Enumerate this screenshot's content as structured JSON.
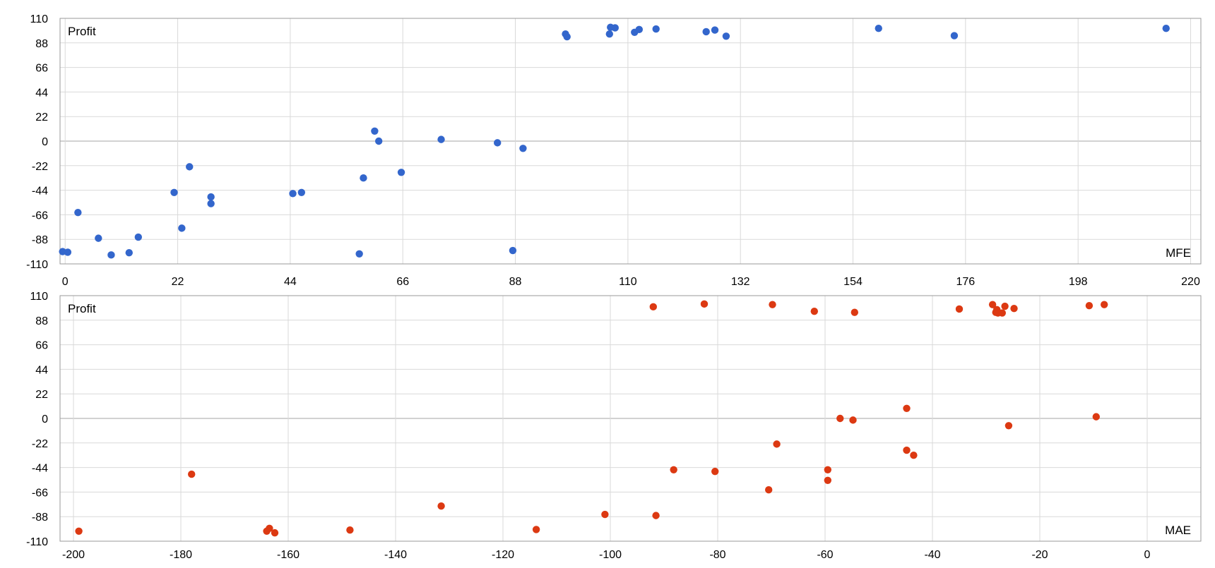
{
  "chart_data": [
    {
      "type": "scatter",
      "title": "",
      "xlabel": "MFE",
      "ylabel": "Profit",
      "xlim": [
        -1,
        222
      ],
      "ylim": [
        -110,
        110
      ],
      "x_ticks": [
        0,
        22,
        44,
        66,
        88,
        110,
        132,
        154,
        176,
        198,
        220
      ],
      "y_ticks": [
        110,
        88,
        66,
        44,
        22,
        0,
        -22,
        -44,
        -66,
        -88,
        -110
      ],
      "grid": true,
      "color": "#3366cc",
      "series": [
        {
          "points": [
            [
              -0.5,
              -99
            ],
            [
              0.5,
              -99.5
            ],
            [
              2.5,
              -64
            ],
            [
              6.5,
              -87
            ],
            [
              9,
              -102
            ],
            [
              12.5,
              -100
            ],
            [
              14.3,
              -86
            ],
            [
              21.3,
              -46
            ],
            [
              22.8,
              -78
            ],
            [
              24.3,
              -23
            ],
            [
              28.5,
              -50
            ],
            [
              28.5,
              -56
            ],
            [
              44.5,
              -47
            ],
            [
              46.2,
              -46
            ],
            [
              57.5,
              -101
            ],
            [
              58.3,
              -33
            ],
            [
              60.5,
              9
            ],
            [
              61.3,
              0
            ],
            [
              65.7,
              -28
            ],
            [
              73.5,
              1.5
            ],
            [
              84.5,
              -1.5
            ],
            [
              87.5,
              -98
            ],
            [
              89.5,
              -6.5
            ],
            [
              97.8,
              96
            ],
            [
              98.1,
              93.5
            ],
            [
              106.4,
              96
            ],
            [
              106.6,
              102
            ],
            [
              107.5,
              101.5
            ],
            [
              111.3,
              97.5
            ],
            [
              112.2,
              100
            ],
            [
              115.5,
              100.5
            ],
            [
              125.3,
              98
            ],
            [
              127,
              99.5
            ],
            [
              129.2,
              94
            ],
            [
              159,
              101
            ],
            [
              173.8,
              94.5
            ],
            [
              215.2,
              101
            ]
          ]
        }
      ]
    },
    {
      "type": "scatter",
      "title": "",
      "xlabel": "MAE",
      "ylabel": "Profit",
      "xlim": [
        -202.5,
        10
      ],
      "ylim": [
        -110,
        110
      ],
      "x_ticks": [
        -200,
        -180,
        -160,
        -140,
        -120,
        -100,
        -80,
        -60,
        -40,
        -20,
        0
      ],
      "y_ticks": [
        110,
        88,
        66,
        44,
        22,
        0,
        -22,
        -44,
        -66,
        -88,
        -110
      ],
      "grid": true,
      "color": "#dc3912",
      "series": [
        {
          "points": [
            [
              -199,
              -101
            ],
            [
              -178,
              -50
            ],
            [
              -164,
              -101
            ],
            [
              -163.5,
              -98.5
            ],
            [
              -162.5,
              -102.5
            ],
            [
              -148.5,
              -100
            ],
            [
              -131.5,
              -78.5
            ],
            [
              -113.8,
              -99.5
            ],
            [
              -101,
              -86
            ],
            [
              -92,
              100
            ],
            [
              -91.5,
              -87
            ],
            [
              -88.2,
              -46
            ],
            [
              -82.5,
              102.5
            ],
            [
              -80.5,
              -47.5
            ],
            [
              -70.5,
              -64
            ],
            [
              -69.8,
              102
            ],
            [
              -69,
              -23
            ],
            [
              -62,
              96
            ],
            [
              -59.5,
              -46
            ],
            [
              -59.5,
              -55.5
            ],
            [
              -57.2,
              0
            ],
            [
              -54.8,
              -1.5
            ],
            [
              -54.5,
              95
            ],
            [
              -44.8,
              9
            ],
            [
              -44.8,
              -28.5
            ],
            [
              -43.5,
              -33
            ],
            [
              -35,
              98
            ],
            [
              -28.8,
              102
            ],
            [
              -28.2,
              95
            ],
            [
              -28,
              97.5
            ],
            [
              -27.8,
              94.5
            ],
            [
              -27,
              94.5
            ],
            [
              -26.5,
              100.5
            ],
            [
              -25.8,
              -6.5
            ],
            [
              -24.8,
              98.5
            ],
            [
              -10.8,
              101
            ],
            [
              -9.5,
              1.5
            ],
            [
              -8,
              102
            ]
          ]
        }
      ]
    }
  ]
}
